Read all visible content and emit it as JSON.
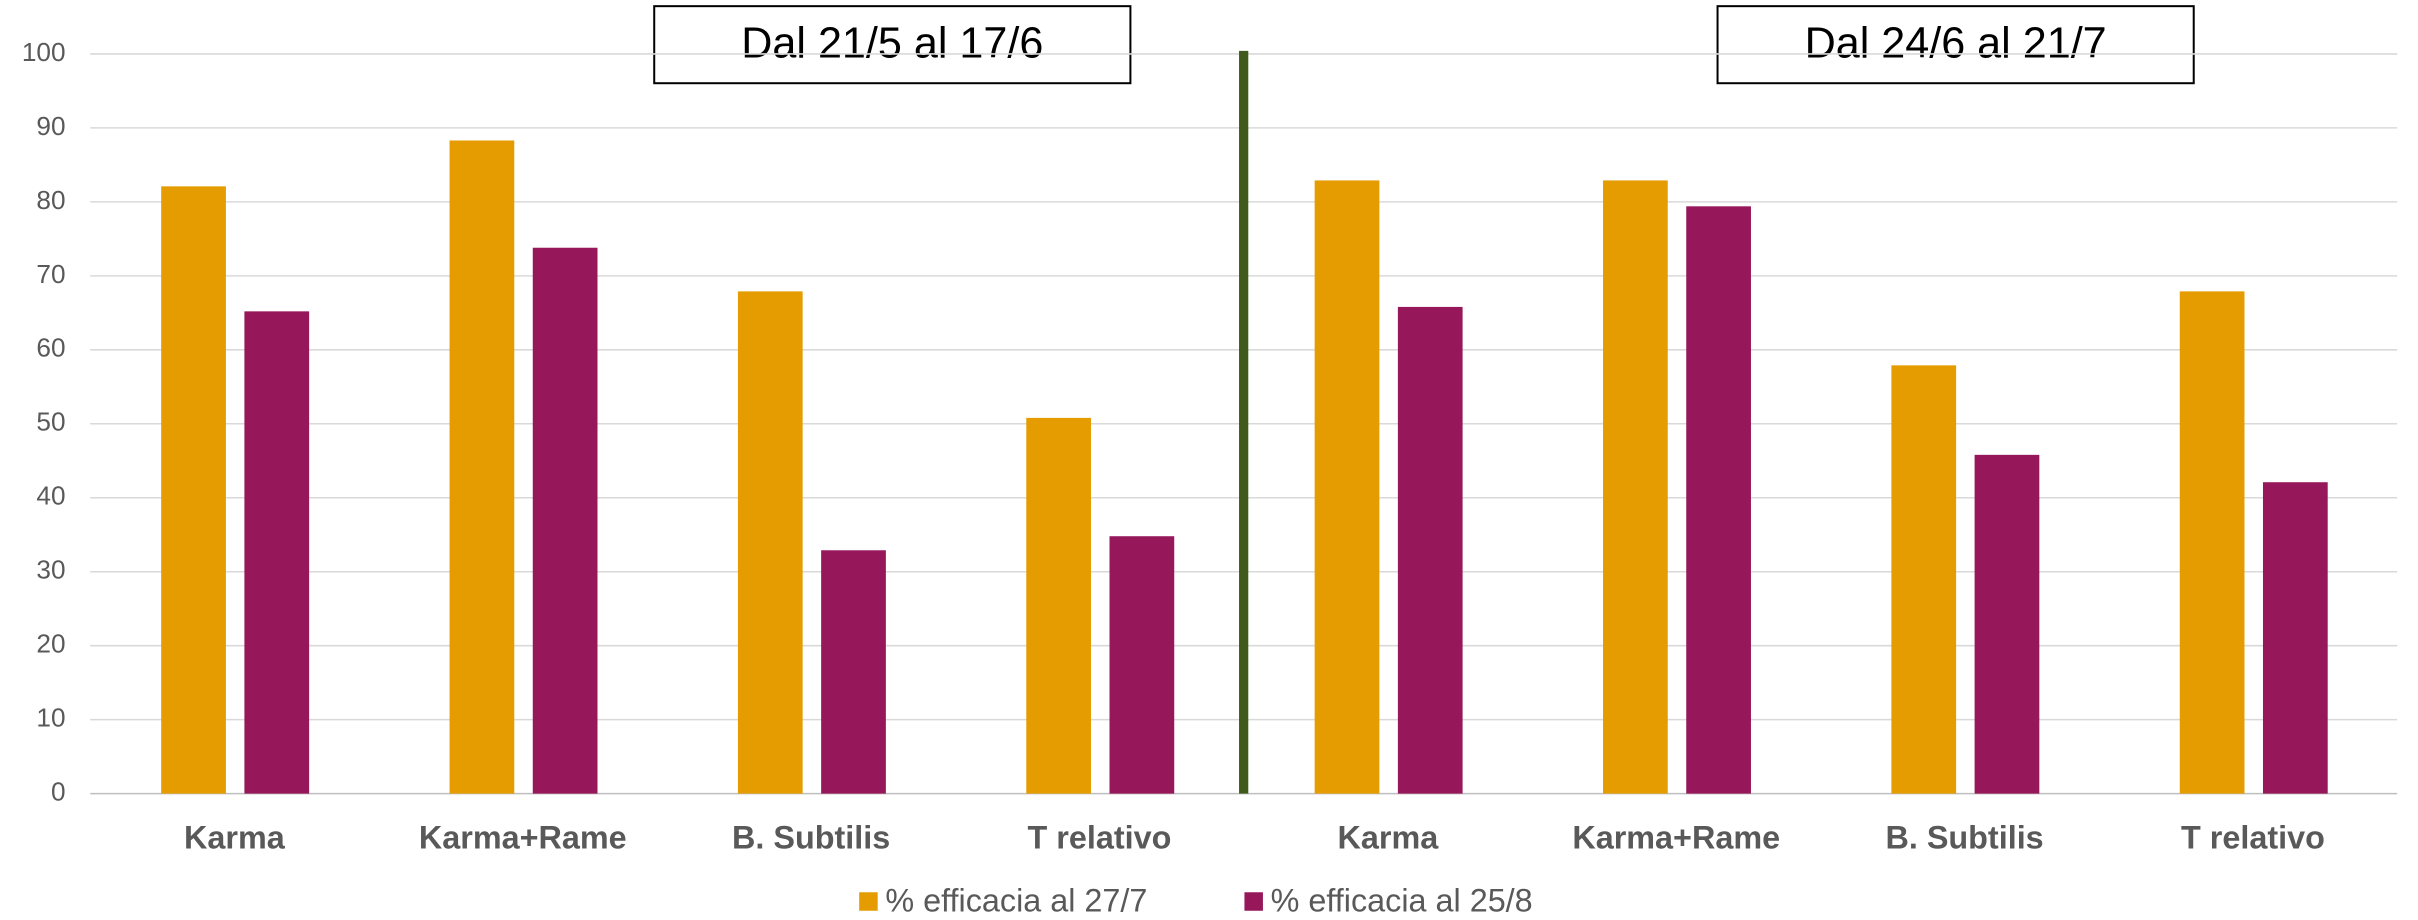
{
  "chart_data": {
    "type": "bar",
    "categories": [
      "Karma",
      "Karma+Rame",
      "B. Subtilis",
      "T relativo",
      "Karma",
      "Karma+Rame",
      "B. Subtilis",
      "T relativo"
    ],
    "series": [
      {
        "name": "% efficacia al 27/7",
        "color": "#e59c00",
        "values": [
          82.1,
          88.3,
          67.9,
          50.8,
          82.9,
          82.9,
          57.9,
          67.9
        ]
      },
      {
        "name": "% efficacia al 25/8",
        "color": "#96175a",
        "values": [
          65.2,
          73.8,
          32.9,
          34.8,
          65.8,
          79.4,
          45.8,
          42.1
        ]
      }
    ],
    "annotations": [
      "Dal 21/5 al 17/6",
      "Dal 24/6 al 21/7"
    ],
    "ylim": [
      0,
      100
    ],
    "yticks": [
      0,
      10,
      20,
      30,
      40,
      50,
      60,
      70,
      80,
      90,
      100
    ],
    "grid": true,
    "legend": "bottom"
  }
}
